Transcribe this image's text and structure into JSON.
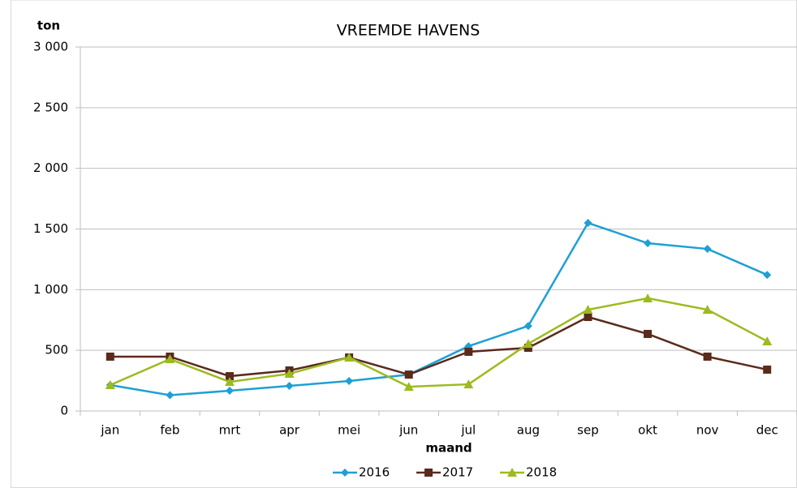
{
  "chart_data": {
    "type": "line",
    "title": "VREEMDE HAVENS",
    "y_label": "ton",
    "x_label": "maand",
    "categories": [
      "jan",
      "feb",
      "mrt",
      "apr",
      "mei",
      "jun",
      "jul",
      "aug",
      "sep",
      "okt",
      "nov",
      "dec"
    ],
    "series": [
      {
        "name": "2016",
        "color": "#1ea0d4",
        "marker": "diamond",
        "values": [
          214,
          130,
          167,
          207,
          247,
          300,
          534,
          701,
          1550,
          1383,
          1336,
          1122
        ]
      },
      {
        "name": "2017",
        "color": "#5a2a1c",
        "marker": "square",
        "values": [
          448,
          448,
          287,
          334,
          441,
          300,
          488,
          521,
          775,
          635,
          448,
          341
        ]
      },
      {
        "name": "2018",
        "color": "#9bbb1e",
        "marker": "triangle",
        "values": [
          214,
          428,
          240,
          307,
          441,
          200,
          220,
          554,
          835,
          929,
          835,
          575
        ]
      }
    ],
    "ylim": [
      0,
      3000
    ],
    "yticks": [
      0,
      500,
      {
        "value": 1000,
        "label": "1 000"
      },
      {
        "value": 1500,
        "label": "1 500"
      },
      {
        "value": 2000,
        "label": "2 000"
      },
      {
        "value": 2500,
        "label": "2 500"
      },
      {
        "value": 3000,
        "label": "3 000"
      }
    ],
    "grid": true,
    "legend": "bottom"
  }
}
